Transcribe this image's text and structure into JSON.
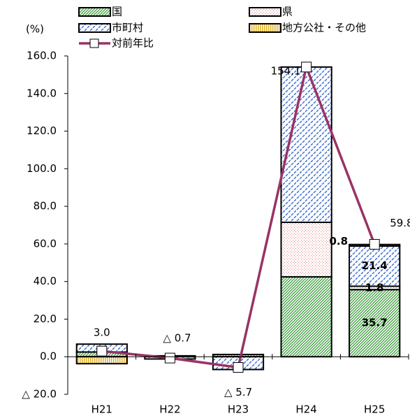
{
  "chart_data": {
    "type": "bar",
    "stacked": true,
    "unit_label": "(%)",
    "categories": [
      "H21",
      "H22",
      "H23",
      "H24",
      "H25"
    ],
    "ylim": [
      -20,
      160
    ],
    "yticks": [
      {
        "value": -20,
        "label": "△ 20.0"
      },
      {
        "value": 0,
        "label": "0.0"
      },
      {
        "value": 20,
        "label": "20.0"
      },
      {
        "value": 40,
        "label": "40.0"
      },
      {
        "value": 60,
        "label": "60.0"
      },
      {
        "value": 80,
        "label": "80.0"
      },
      {
        "value": 100,
        "label": "100.0"
      },
      {
        "value": 120,
        "label": "120.0"
      },
      {
        "value": 140,
        "label": "140.0"
      },
      {
        "value": 160,
        "label": "160.0"
      }
    ],
    "grid": false,
    "series": [
      {
        "name": "国",
        "color": "#3a9a3a",
        "pattern": "hatch",
        "values": [
          2.5,
          0.5,
          1.2,
          42.5,
          35.7
        ]
      },
      {
        "name": "県",
        "color": "#e08080",
        "pattern": "dots",
        "values": [
          0,
          0,
          0,
          29,
          1.8
        ]
      },
      {
        "name": "市町村",
        "color": "#3f6fd0",
        "pattern": "dash",
        "values": [
          4.2,
          -1.2,
          -6.8,
          82.6,
          21.4
        ]
      },
      {
        "name": "地方公社・その他",
        "color": "#e0b020",
        "pattern": "vstripe",
        "values": [
          -3.7,
          0,
          0,
          0,
          0.8
        ]
      },
      {
        "name": "対前年比",
        "type": "line",
        "color": "#993366",
        "values": [
          3.0,
          -0.7,
          -5.7,
          154.1,
          59.8
        ],
        "value_labels": [
          "3.0",
          "△ 0.7",
          "△ 5.7",
          "154.1",
          "59.8"
        ]
      }
    ]
  }
}
